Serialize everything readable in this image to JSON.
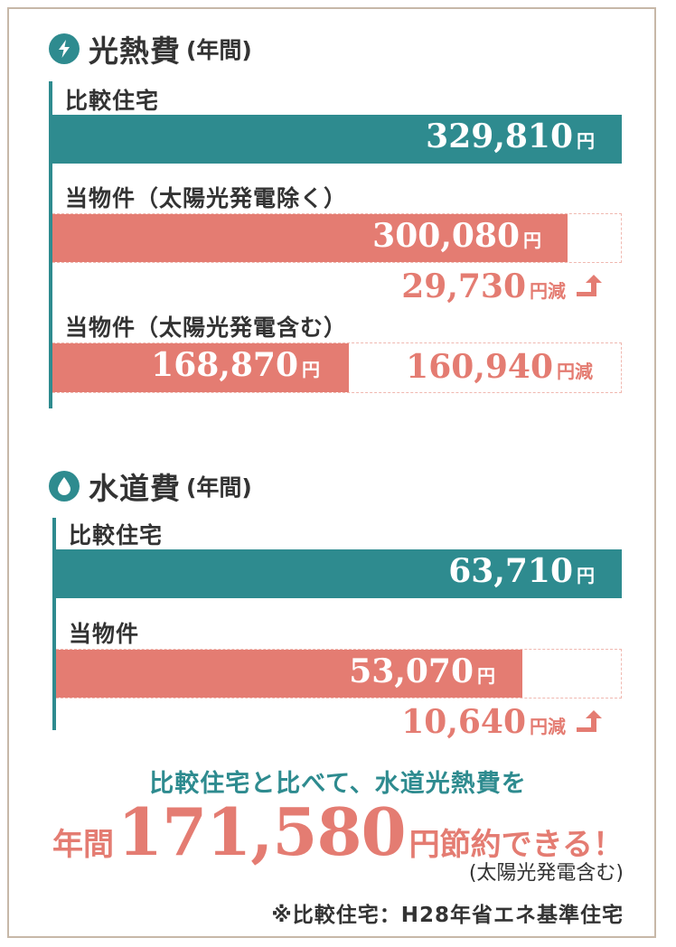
{
  "colors": {
    "teal": "#2e8b8f",
    "coral": "#e47c72",
    "border": "#c7b8a8"
  },
  "energy": {
    "icon": "lightning-icon",
    "title": "光熱費",
    "title_sub": "(年間)",
    "rows": [
      {
        "label": "比較住宅",
        "value_text": "329,810",
        "unit": "円"
      },
      {
        "label": "当物件（太陽光発電除く）",
        "value_text": "300,080",
        "unit": "円"
      },
      {
        "label": "当物件（太陽光発電含む）",
        "value_text": "168,870",
        "unit": "円"
      }
    ],
    "diff1": {
      "value_text": "29,730",
      "unit": "円減"
    },
    "diff2": {
      "value_text": "160,940",
      "unit": "円減"
    }
  },
  "water": {
    "icon": "water-drop-icon",
    "title": "水道費",
    "title_sub": "(年間)",
    "rows": [
      {
        "label": "比較住宅",
        "value_text": "63,710",
        "unit": "円"
      },
      {
        "label": "当物件",
        "value_text": "53,070",
        "unit": "円"
      }
    ],
    "diff1": {
      "value_text": "10,640",
      "unit": "円減"
    }
  },
  "summary": {
    "line1": "比較住宅と比べて、水道光熱費を",
    "pre": "年間",
    "amount": "171,580",
    "post": "円節約できる！",
    "note": "(太陽光発電含む)",
    "footnote": "※比較住宅：H28年省エネ基準住宅"
  },
  "chart_data": [
    {
      "type": "bar",
      "title": "光熱費(年間)",
      "categories": [
        "比較住宅",
        "当物件（太陽光発電除く）",
        "当物件（太陽光発電含む）"
      ],
      "values": [
        329810,
        300080,
        168870
      ],
      "unit": "円",
      "annotations": [
        "29,730円減",
        "160,940円減"
      ]
    },
    {
      "type": "bar",
      "title": "水道費(年間)",
      "categories": [
        "比較住宅",
        "当物件"
      ],
      "values": [
        63710,
        53070
      ],
      "unit": "円",
      "annotations": [
        "10,640円減"
      ]
    }
  ]
}
